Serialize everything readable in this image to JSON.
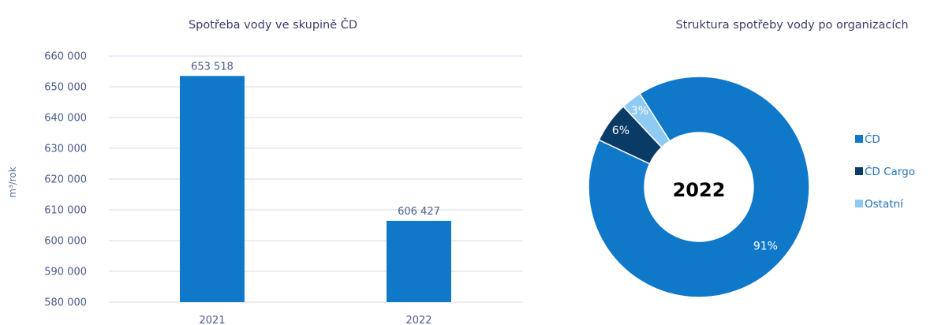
{
  "chart_data": [
    {
      "type": "bar",
      "title": "Spotřeba vody ve skupině ČD",
      "xlabel": "",
      "ylabel": "m³/rok",
      "categories": [
        "2021",
        "2022"
      ],
      "values": [
        653518,
        606427
      ],
      "data_labels": [
        "653 518",
        "606 427"
      ],
      "ylim": [
        580000,
        660000
      ],
      "yticks": [
        580000,
        590000,
        600000,
        610000,
        620000,
        630000,
        640000,
        650000,
        660000
      ],
      "ytick_labels": [
        "580 000",
        "590 000",
        "600 000",
        "610 000",
        "620 000",
        "630 000",
        "640 000",
        "650 000",
        "660 000"
      ],
      "grid": true,
      "bar_color": "#1078c8"
    },
    {
      "type": "pie",
      "title": "Struktura spotřeby vody po organizacích",
      "center_label": "2022",
      "labels": [
        "ČD",
        "ČD Cargo",
        "Ostatní"
      ],
      "values": [
        91,
        6,
        3
      ],
      "value_labels": [
        "91%",
        "6%",
        "3%"
      ],
      "colors": [
        "#1078c8",
        "#0a3a66",
        "#8fcaf2"
      ],
      "label_colors": [
        "#ffffff",
        "#ffffff",
        "#ffffff"
      ],
      "legend": "right"
    }
  ]
}
